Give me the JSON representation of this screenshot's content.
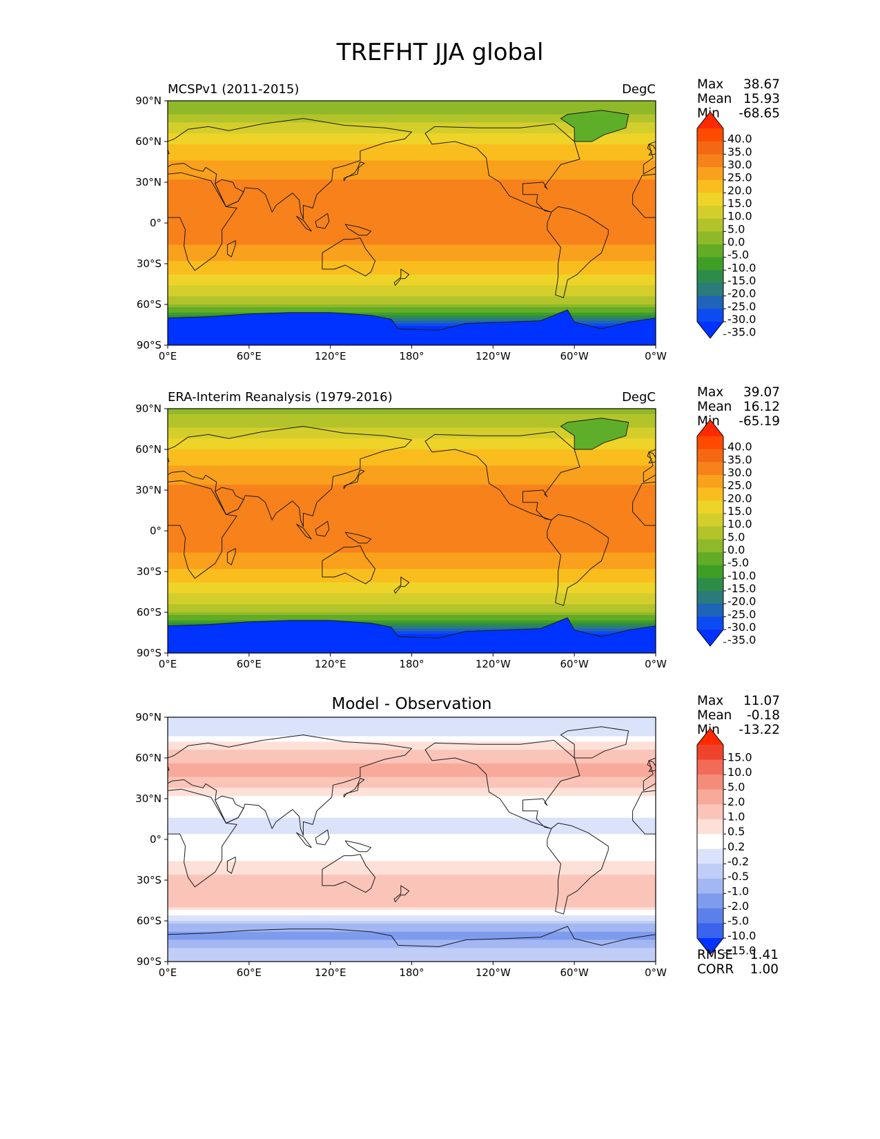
{
  "title": "TREFHT JJA global",
  "chart_data": [
    {
      "type": "heatmap",
      "title": "MCSPv1 (2011-2015)",
      "units": "DegC",
      "title_position": "left",
      "x_ticks": [
        "0°E",
        "60°E",
        "120°E",
        "180°",
        "120°W",
        "60°W",
        "0°W"
      ],
      "y_ticks": [
        "90°N",
        "60°N",
        "30°N",
        "0°",
        "30°S",
        "60°S",
        "90°S"
      ],
      "xlim": [
        0,
        360
      ],
      "ylim": [
        -90,
        90
      ],
      "stats": {
        "Max": "38.67",
        "Mean": "15.93",
        "Min": "-68.65"
      },
      "colorbar": {
        "levels": [
          "40.0",
          "35.0",
          "30.0",
          "25.0",
          "20.0",
          "15.0",
          "10.0",
          "5.0",
          "0.0",
          "-5.0",
          "-10.0",
          "-15.0",
          "-20.0",
          "-25.0",
          "-30.0",
          "-35.0"
        ],
        "colors": [
          "#ff2a00",
          "#ff4a00",
          "#f46814",
          "#f7811a",
          "#f9a01c",
          "#f9bd1e",
          "#eed428",
          "#d4ce2c",
          "#b2c42a",
          "#8fb928",
          "#62ac26",
          "#3f9e26",
          "#2e8c4a",
          "#2a7b7a",
          "#2064b9",
          "#0d4bf2",
          "#0033ff"
        ]
      },
      "zonal_profile_degC": {
        "lat": [
          90,
          80,
          70,
          60,
          50,
          40,
          30,
          20,
          10,
          0,
          -10,
          -20,
          -30,
          -40,
          -50,
          -60,
          -70,
          -80,
          -90
        ],
        "value": [
          -2,
          0,
          8,
          14,
          18,
          22,
          26,
          27,
          28,
          27,
          26,
          24,
          19,
          14,
          8,
          0,
          -20,
          -45,
          -50
        ]
      }
    },
    {
      "type": "heatmap",
      "title": "ERA-Interim Reanalysis (1979-2016)",
      "units": "DegC",
      "title_position": "left",
      "x_ticks": [
        "0°E",
        "60°E",
        "120°E",
        "180°",
        "120°W",
        "60°W",
        "0°W"
      ],
      "y_ticks": [
        "90°N",
        "60°N",
        "30°N",
        "0°",
        "30°S",
        "60°S",
        "90°S"
      ],
      "xlim": [
        0,
        360
      ],
      "ylim": [
        -90,
        90
      ],
      "stats": {
        "Max": "39.07",
        "Mean": "16.12",
        "Min": "-65.19"
      },
      "colorbar": {
        "levels": [
          "40.0",
          "35.0",
          "30.0",
          "25.0",
          "20.0",
          "15.0",
          "10.0",
          "5.0",
          "0.0",
          "-5.0",
          "-10.0",
          "-15.0",
          "-20.0",
          "-25.0",
          "-30.0",
          "-35.0"
        ],
        "colors": [
          "#ff2a00",
          "#ff4a00",
          "#f46814",
          "#f7811a",
          "#f9a01c",
          "#f9bd1e",
          "#eed428",
          "#d4ce2c",
          "#b2c42a",
          "#8fb928",
          "#62ac26",
          "#3f9e26",
          "#2e8c4a",
          "#2a7b7a",
          "#2064b9",
          "#0d4bf2",
          "#0033ff"
        ]
      },
      "zonal_profile_degC": {
        "lat": [
          90,
          80,
          70,
          60,
          50,
          40,
          30,
          20,
          10,
          0,
          -10,
          -20,
          -30,
          -40,
          -50,
          -60,
          -70,
          -80,
          -90
        ],
        "value": [
          -1,
          1,
          9,
          15,
          19,
          23,
          26,
          27,
          28,
          27,
          26,
          24,
          19,
          14,
          8,
          0,
          -19,
          -44,
          -50
        ]
      }
    },
    {
      "type": "heatmap",
      "title": "Model - Observation",
      "units": "",
      "title_position": "center",
      "x_ticks": [
        "0°E",
        "60°E",
        "120°E",
        "180°",
        "120°W",
        "60°W",
        "0°W"
      ],
      "y_ticks": [
        "90°N",
        "60°N",
        "30°N",
        "0°",
        "30°S",
        "60°S",
        "90°S"
      ],
      "xlim": [
        0,
        360
      ],
      "ylim": [
        -90,
        90
      ],
      "stats": {
        "Max": "11.07",
        "Mean": "-0.18",
        "Min": "-13.22"
      },
      "metrics": {
        "RMSE": "1.41",
        "CORR": "1.00"
      },
      "colorbar": {
        "levels": [
          "15.0",
          "10.0",
          "5.0",
          "2.0",
          "1.0",
          "0.5",
          "0.2",
          "-0.2",
          "-0.5",
          "-1.0",
          "-2.0",
          "-5.0",
          "-10.0",
          "-15.0"
        ],
        "colors": [
          "#ff2a00",
          "#f0432e",
          "#f26b57",
          "#f58c79",
          "#f8aa9a",
          "#fac4b8",
          "#fde0d8",
          "#ffffff",
          "#dbe3fa",
          "#c0cdf7",
          "#a3b7f3",
          "#7e9bee",
          "#5c80ea",
          "#3a63ee",
          "#0033ff"
        ]
      },
      "zonal_profile_degC": {
        "lat": [
          90,
          80,
          70,
          60,
          50,
          40,
          30,
          20,
          10,
          0,
          -10,
          -20,
          -30,
          -40,
          -50,
          -60,
          -70,
          -80,
          -90
        ],
        "value": [
          -0.3,
          -0.5,
          0.3,
          0.8,
          1.2,
          0.6,
          0.1,
          -0.1,
          -0.4,
          -0.1,
          0.0,
          0.3,
          0.6,
          0.8,
          0.5,
          -0.6,
          -2.5,
          -1.0,
          -1.0
        ]
      }
    }
  ]
}
